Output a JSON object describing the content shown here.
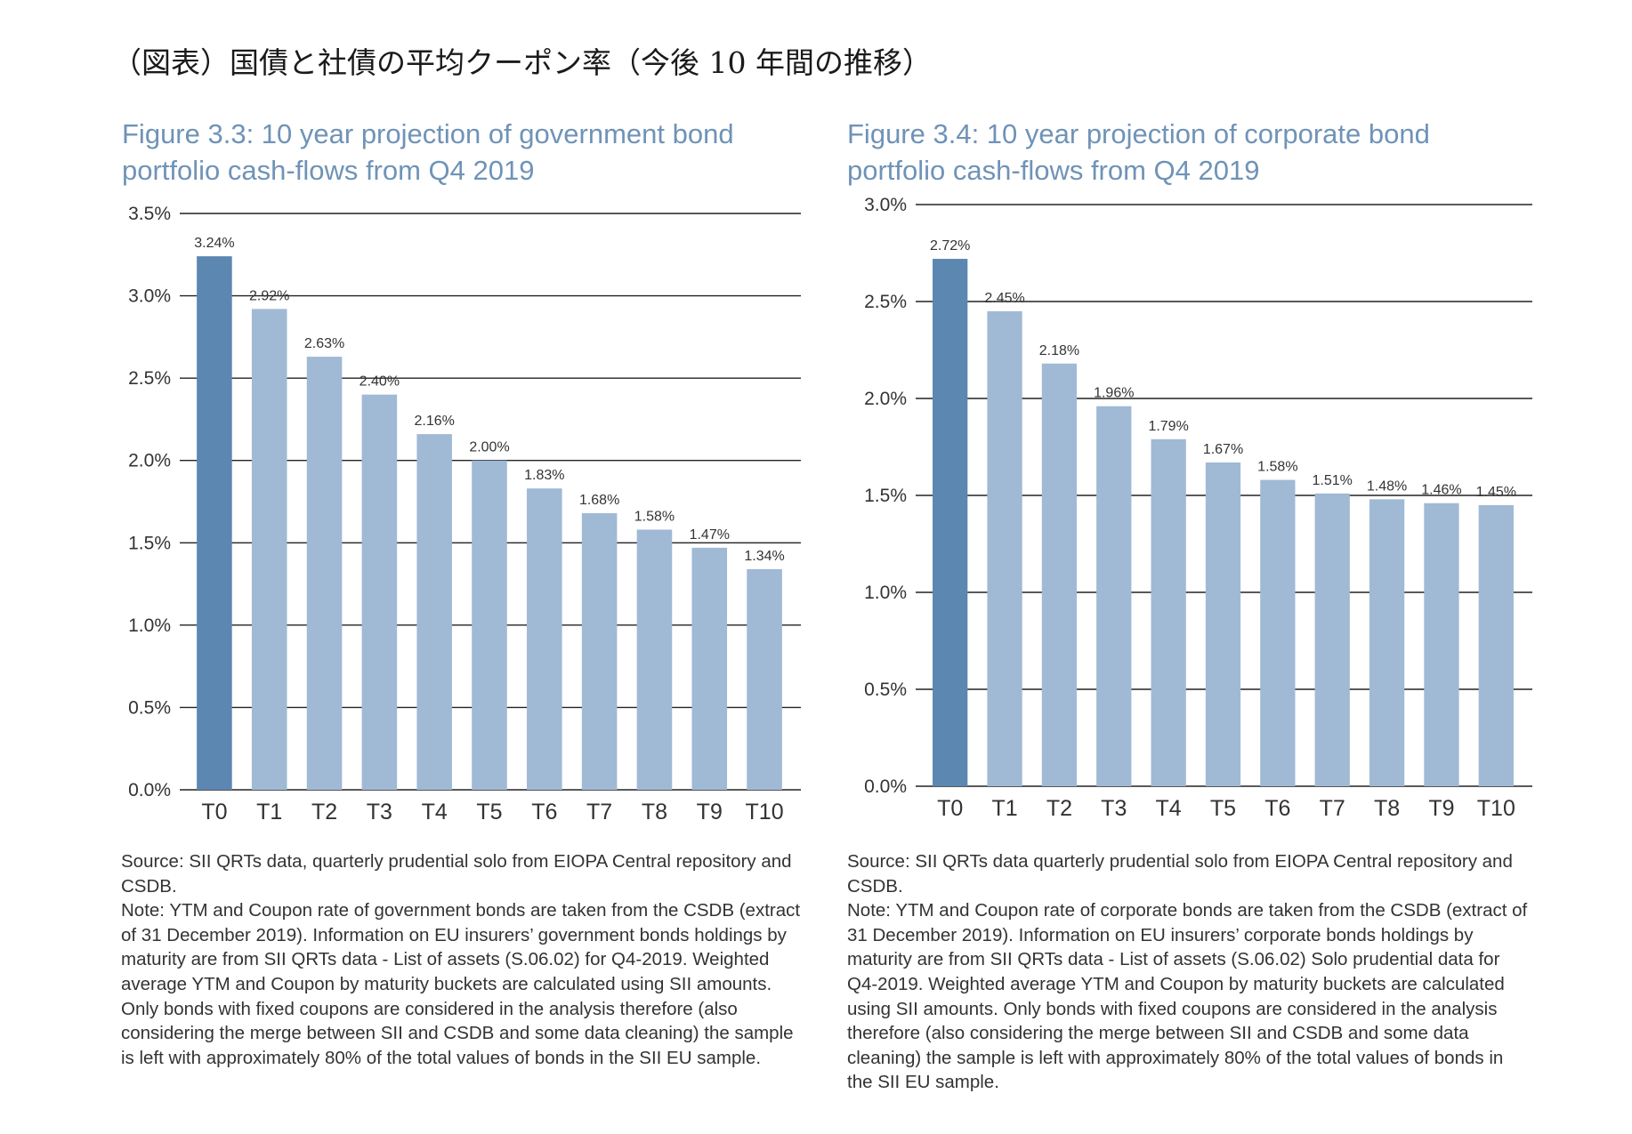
{
  "page_title": "（図表）国債と社債の平均クーポン率（今後 10 年間の推移）",
  "colors": {
    "t0_bar": "#5b87b1",
    "other_bar": "#a0b9d5",
    "title": "#6f93b7",
    "grid": "#222222"
  },
  "chart_data": [
    {
      "type": "bar",
      "title": "Figure 3.3: 10 year projection of government bond portfolio cash-flows from Q4 2019",
      "categories": [
        "T0",
        "T1",
        "T2",
        "T3",
        "T4",
        "T5",
        "T6",
        "T7",
        "T8",
        "T9",
        "T10"
      ],
      "values": [
        3.24,
        2.92,
        2.63,
        2.4,
        2.16,
        2.0,
        1.83,
        1.68,
        1.58,
        1.47,
        1.34
      ],
      "data_labels": [
        "3.24%",
        "2.92%",
        "2.63%",
        "2.40%",
        "2.16%",
        "2.00%",
        "1.83%",
        "1.68%",
        "1.58%",
        "1.47%",
        "1.34%"
      ],
      "y_ticks": [
        0,
        0.5,
        1.0,
        1.5,
        2.0,
        2.5,
        3.0,
        3.5
      ],
      "y_tick_labels": [
        "0.0%",
        "0.5%",
        "1.0%",
        "1.5%",
        "2.0%",
        "2.5%",
        "3.0%",
        "3.5%"
      ],
      "ylim": [
        0,
        3.5
      ],
      "grid": true,
      "xlabel": "",
      "ylabel": "",
      "source": "Source: SII QRTs data, quarterly prudential solo from EIOPA Central repository and CSDB.",
      "note": "Note: YTM and Coupon rate of government bonds are taken from the CSDB (extract of 31 December 2019). Information on EU insurers’ government bonds holdings by maturity are from SII QRTs data - List of assets (S.06.02) for Q4-2019. Weighted average YTM and Coupon by maturity buckets are calculated using SII amounts. Only bonds with fixed coupons are considered in the analysis therefore (also considering the merge between SII and CSDB and some data cleaning) the sample is left with approximately 80% of the total values of bonds in the SII EU sample."
    },
    {
      "type": "bar",
      "title": "Figure 3.4: 10 year projection of corporate bond portfolio cash-flows from Q4 2019",
      "categories": [
        "T0",
        "T1",
        "T2",
        "T3",
        "T4",
        "T5",
        "T6",
        "T7",
        "T8",
        "T9",
        "T10"
      ],
      "values": [
        2.72,
        2.45,
        2.18,
        1.96,
        1.79,
        1.67,
        1.58,
        1.51,
        1.48,
        1.46,
        1.45
      ],
      "data_labels": [
        "2.72%",
        "2.45%",
        "2.18%",
        "1.96%",
        "1.79%",
        "1.67%",
        "1.58%",
        "1.51%",
        "1.48%",
        "1.46%",
        "1.45%"
      ],
      "y_ticks": [
        0,
        0.5,
        1.0,
        1.5,
        2.0,
        2.5,
        3.0
      ],
      "y_tick_labels": [
        "0.0%",
        "0.5%",
        "1.0%",
        "1.5%",
        "2.0%",
        "2.5%",
        "3.0%"
      ],
      "ylim": [
        0,
        3.0
      ],
      "grid": true,
      "xlabel": "",
      "ylabel": "",
      "source": "Source: SII QRTs data quarterly prudential solo from EIOPA Central repository and CSDB.",
      "note": "Note: YTM and Coupon rate of corporate bonds are taken from the CSDB (extract of 31 December 2019). Information on EU insurers’ corporate bonds holdings by maturity are from SII QRTs data - List of assets (S.06.02) Solo prudential data for Q4-2019. Weighted average YTM and Coupon by maturity buckets are calculated using SII amounts. Only bonds with fixed coupons are considered in the analysis therefore (also considering the merge between SII and CSDB and some data cleaning) the sample is left with approximately 80% of the total values of bonds in the SII EU sample."
    }
  ]
}
